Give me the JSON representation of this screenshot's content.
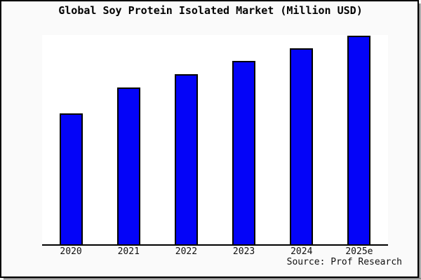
{
  "window": {
    "background_color": "#fafafa",
    "frame_border_color": "#000000"
  },
  "title": "Global Soy Protein Isolated Market (Million USD)",
  "source_note": "Source: Prof Research",
  "chart_data": {
    "type": "bar",
    "title": "Global Soy Protein Isolated Market (Million USD)",
    "categories": [
      "2020",
      "2021",
      "2022",
      "2023",
      "2024",
      "2025e"
    ],
    "values": [
      63.0,
      75.3,
      81.7,
      88.0,
      94.0,
      100.0
    ],
    "values_note": "percent of tallest bar; chart displays no numeric y-axis labels",
    "xlabel": "",
    "ylabel": "",
    "ylim": [
      0,
      100
    ],
    "bar_color": "#0404f8",
    "bar_border_color": "#000000",
    "plot_background": "#ffffff",
    "axis_line_color": "#000000",
    "gridlines": false,
    "legend": false,
    "y_axis_labels_visible": false,
    "source_note": "Source: Prof Research"
  }
}
